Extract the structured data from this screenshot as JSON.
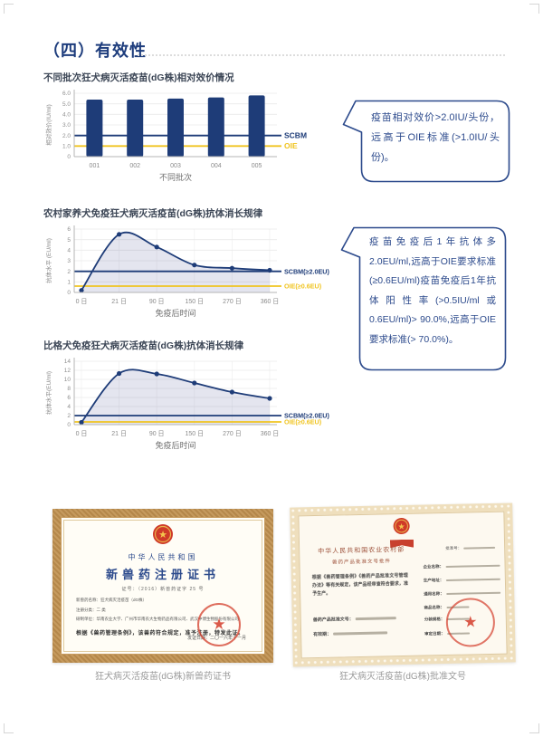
{
  "page": {
    "section_title": "（四）有效性"
  },
  "chart_data": [
    {
      "type": "bar",
      "title": "不同批次狂犬病灭活疫苗(dG株)相对效价情况",
      "ylabel": "相对效价(IU/ml)",
      "xlabel": "不同批次",
      "categories": [
        "001",
        "002",
        "003",
        "004",
        "005"
      ],
      "values": [
        5.4,
        5.4,
        5.5,
        5.6,
        5.8
      ],
      "ylim": [
        0,
        6
      ],
      "ytick_vals": [
        0,
        1,
        2,
        3,
        4,
        5,
        6
      ],
      "ytick_labels": [
        "0",
        "1.0",
        "2.0",
        "3.0",
        "4.0",
        "5.0",
        "6.0"
      ],
      "bar_color": "#1e3c78",
      "ref_lines": [
        {
          "label": "SCBM",
          "value": 2.0,
          "color": "#1e3c78"
        },
        {
          "label": "OIE",
          "value": 1.0,
          "color": "#f0c420"
        }
      ]
    },
    {
      "type": "line",
      "title": "农村家养犬免疫狂犬病灭活疫苗(dG株)抗体消长规律",
      "ylabel": "抗体水平 (EU/ml)",
      "xlabel": "免疫后时间",
      "categories": [
        "0 日",
        "21 日",
        "90 日",
        "150 日",
        "270 日",
        "360 日"
      ],
      "values": [
        0.2,
        5.5,
        4.3,
        2.6,
        2.3,
        2.1
      ],
      "ylim": [
        0,
        6
      ],
      "ytick_vals": [
        0,
        1,
        2,
        3,
        4,
        5,
        6
      ],
      "ytick_labels": [
        "0",
        "1",
        "2",
        "3",
        "4",
        "5",
        "6"
      ],
      "line_color": "#1e3c78",
      "fill_color": "rgba(62,72,140,0.14)",
      "ref_lines": [
        {
          "label": "SCBM(≥2.0EU)",
          "value": 2.0,
          "color": "#1e3c78"
        },
        {
          "label": "OIE(≥0.6EU)",
          "value": 0.6,
          "color": "#f0c420"
        }
      ]
    },
    {
      "type": "line",
      "title": "比格犬免疫狂犬病灭活疫苗(dG株)抗体消长规律",
      "ylabel": "抗体水平(EU/ml)",
      "xlabel": "免疫后时间",
      "categories": [
        "0 日",
        "21 日",
        "90 日",
        "150 日",
        "270 日",
        "360 日"
      ],
      "values": [
        0.5,
        11.3,
        11.2,
        9.2,
        7.2,
        5.8
      ],
      "ylim": [
        0,
        14
      ],
      "ytick_vals": [
        0,
        2,
        4,
        6,
        8,
        10,
        12,
        14
      ],
      "ytick_labels": [
        "0",
        "2",
        "4",
        "6",
        "8",
        "10",
        "12",
        "14"
      ],
      "line_color": "#1e3c78",
      "fill_color": "rgba(62,72,140,0.14)",
      "ref_lines": [
        {
          "label": "SCBM(≥2.0EU)",
          "value": 2.0,
          "color": "#1e3c78"
        },
        {
          "label": "OIE(≥0.6EU)",
          "value": 0.6,
          "color": "#f0c420"
        }
      ]
    }
  ],
  "bubbles": [
    {
      "text": "疫苗相对效价>2.0IU/头份，远高于OIE标准(>1.0IU/头份)。"
    },
    {
      "text": "疫苗免疫后1年抗体多2.0EU/ml,远高于OIE要求标准(≥0.6EU/ml)疫苗免疫后1年抗体阳性率(>0.5IU/ml或0.6EU/ml)> 90.0%,远高于OIE要求标准(> 70.0%)。"
    }
  ],
  "certificates": {
    "left": {
      "country": "中华人民共和国",
      "title": "新兽药注册证书",
      "cert_no": "证号：（2016）新兽药证字 25 号",
      "lines": [
        "新兽药名称：狂犬病灭活疫苗（dG株）",
        "注册分类：二 类",
        "研制单位：华南农业大学、广州市华南农大生物药品有限公司、武汉中博生物股份有限公司",
        "根据《兽药管理条例》，该兽药符合规定，准予注册，特发此证。"
      ],
      "date_label": "发证日期：二〇一六年十一月",
      "caption": "狂犬病灭活疫苗(dG株)新兽药证书"
    },
    "right": {
      "authority": "中华人民共和国农业农村部",
      "doc_type": "兽药产品批准文号批件",
      "approval_no_label": "批准号：",
      "body": "根据《兽药管理条例》《兽药产品批准文号管理办法》等有关规定，该产品经审查符合要求，准予生产。",
      "fields": [
        "企业名称：",
        "生产地址：",
        "通用名称：",
        "商品名称："
      ],
      "bottom_fields": [
        "兽药产品批准文号：",
        "有效期："
      ],
      "right_fields": [
        "分装规格：",
        "审定日期："
      ],
      "caption": "狂犬病灭活疫苗(dG株)批准文号"
    }
  },
  "colors": {
    "navy": "#1e3c78",
    "yellow": "#f0c420",
    "bubble_blue": "#2c4a8c"
  }
}
